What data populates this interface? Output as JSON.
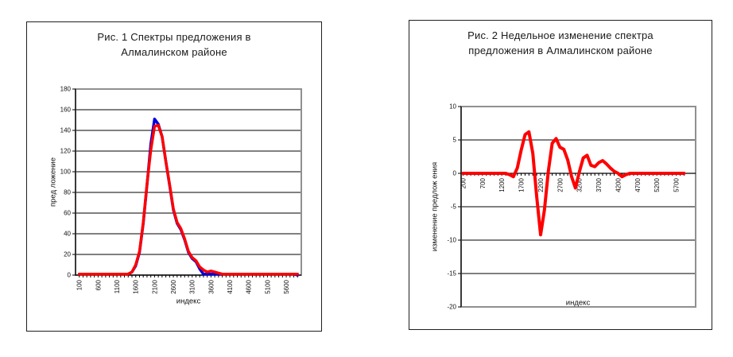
{
  "page": {
    "background": "#ffffff"
  },
  "colors": {
    "red_series": "#FF0000",
    "blue_series": "#0000DD",
    "plot_border": "#909090",
    "grid": "#000000"
  },
  "chart_data": [
    {
      "type": "line",
      "title_line1": "Рис. 1 Спектры предложения в",
      "title_line2": "Алмалинском районе",
      "xlabel": "индекс",
      "ylabel": "пред ложение",
      "xlim": [
        0,
        6000
      ],
      "ylim": [
        0,
        180
      ],
      "ytick_step": 20,
      "xtick_labels": [
        100,
        600,
        1100,
        1600,
        2100,
        2600,
        3100,
        3600,
        4100,
        4600,
        5100,
        5600
      ],
      "minor_tick_step": 100,
      "x_axis_at": 0,
      "x_start": 100,
      "x_step": 100,
      "grid": true,
      "legend": "none",
      "plot_border_color": "#909090",
      "series": [
        {
          "name": "blue-series",
          "color": "#0000DD",
          "values": [
            1,
            1,
            1,
            1,
            1,
            1,
            1,
            1,
            1,
            1,
            1,
            1,
            1,
            1,
            3,
            9,
            22,
            50,
            87,
            127,
            151,
            146,
            134,
            110,
            87,
            63,
            50,
            44,
            34,
            22,
            16,
            13,
            6,
            1,
            1,
            1,
            1,
            1,
            1,
            1,
            1,
            1,
            1,
            1,
            1,
            1,
            1,
            1,
            1,
            1,
            1,
            1,
            1,
            1,
            1,
            1,
            1,
            1,
            0
          ]
        },
        {
          "name": "red-series",
          "color": "#FF0000",
          "values": [
            1,
            1,
            1,
            1,
            1,
            1,
            1,
            1,
            1,
            1,
            1,
            1,
            1,
            1,
            3,
            10,
            23,
            51,
            88,
            121,
            144,
            145,
            134,
            110,
            88,
            64,
            51,
            45,
            35,
            23,
            17,
            14,
            8,
            5,
            3,
            4,
            3,
            2,
            1,
            1,
            1,
            1,
            1,
            1,
            1,
            1,
            1,
            1,
            1,
            1,
            1,
            1,
            1,
            1,
            1,
            1,
            1,
            1,
            1
          ]
        }
      ]
    },
    {
      "type": "line",
      "title_line1": "Рис. 2 Недельное изменение спектра",
      "title_line2": "предложения в Алмалинском районе",
      "xlabel": "индекс",
      "ylabel": "изменение предлож ения",
      "xlim": [
        150,
        6200
      ],
      "ylim": [
        -20,
        10
      ],
      "ytick_step": 5,
      "xtick_labels": [
        200,
        700,
        1200,
        1700,
        2200,
        2700,
        3200,
        3700,
        4200,
        4700,
        5200,
        5700
      ],
      "minor_tick_step": 100,
      "x_axis_at": 0,
      "x_start": 200,
      "x_step": 100,
      "grid": true,
      "legend": "none",
      "plot_border_color": "#909090",
      "series": [
        {
          "name": "red-series",
          "color": "#FF0000",
          "values": [
            0,
            0,
            0,
            0,
            0,
            0,
            0,
            0,
            0,
            0,
            0,
            0,
            -0.2,
            -0.5,
            0.8,
            3.5,
            5.8,
            6.2,
            3.0,
            -3.5,
            -9.2,
            -5.5,
            0.3,
            4.5,
            5.2,
            3.9,
            3.6,
            2.0,
            -0.5,
            -2.2,
            0.2,
            2.3,
            2.7,
            1.2,
            1.0,
            1.6,
            1.9,
            1.4,
            0.8,
            0.3,
            0,
            -0.5,
            -0.2,
            0,
            0,
            0,
            0,
            0,
            0,
            0,
            0,
            0,
            0,
            0,
            0,
            0,
            0,
            0
          ]
        }
      ]
    }
  ]
}
